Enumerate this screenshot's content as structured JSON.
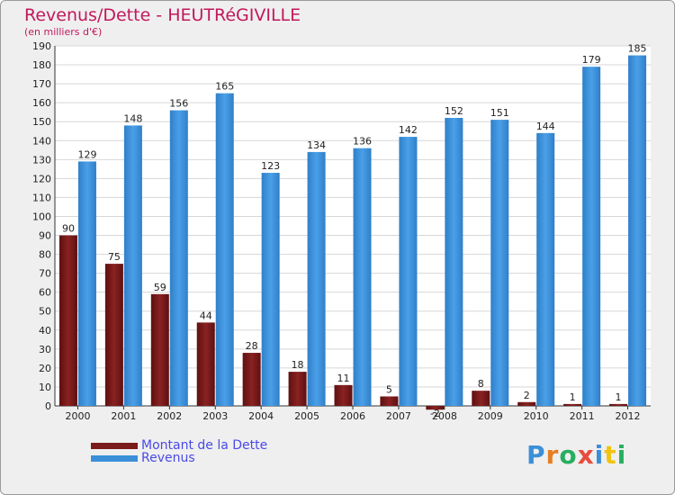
{
  "title": "Revenus/Dette - HEUTRéGIVILLE",
  "subtitle": "(en milliers d'€)",
  "colors": {
    "dette": "#7b1a1a",
    "revenus": "#3a8fd8",
    "text": "#222222",
    "accent": "#c2185b"
  },
  "legend": {
    "dette_label": "Montant de la Dette",
    "revenus_label": "Revenus"
  },
  "logo": {
    "text": "Proxiti",
    "letters": [
      "P",
      "r",
      "o",
      "x",
      "i",
      "t",
      "i"
    ],
    "colors": [
      "#3a8fd8",
      "#e67e22",
      "#27ae60",
      "#e74c3c",
      "#3a8fd8",
      "#f1c40f",
      "#27ae60"
    ]
  },
  "chart_data": {
    "type": "bar",
    "categories": [
      "2000",
      "2001",
      "2002",
      "2003",
      "2004",
      "2005",
      "2006",
      "2007",
      "2008",
      "2009",
      "2010",
      "2011",
      "2012"
    ],
    "series": [
      {
        "name": "Montant de la Dette",
        "values": [
          90,
          75,
          59,
          44,
          28,
          18,
          11,
          5,
          -2,
          8,
          2,
          1,
          1
        ]
      },
      {
        "name": "Revenus",
        "values": [
          129,
          148,
          156,
          165,
          123,
          134,
          136,
          142,
          152,
          151,
          144,
          179,
          185
        ]
      }
    ],
    "title": "Revenus/Dette - HEUTRéGIVILLE",
    "ylabel": "(en milliers d'€)",
    "ylim": [
      0,
      190
    ],
    "ytick_step": 10,
    "grid": true,
    "legend_position": "bottom-left"
  }
}
